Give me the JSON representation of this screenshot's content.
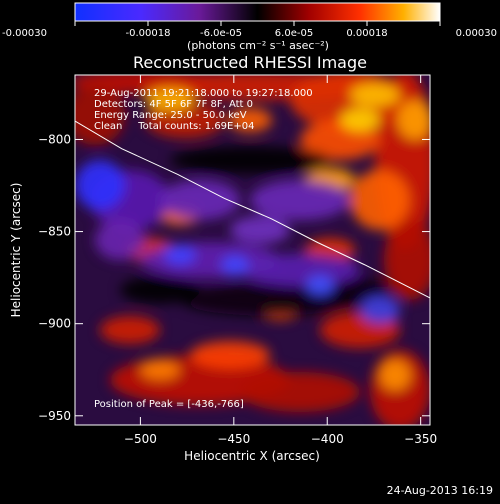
{
  "colorbar": {
    "ticks": [
      "-0.00030",
      "-0.00018",
      "-6.0e-05",
      "6.0e-05",
      "0.00018",
      "0.00030"
    ],
    "tick_values": [
      -0.0003,
      -0.00018,
      -6e-05,
      6e-05,
      0.00018,
      0.0003
    ],
    "range": [
      -0.0003,
      0.0003
    ],
    "units_label": "(photons cm⁻² s⁻¹ asec⁻²)"
  },
  "chart_data": {
    "type": "heatmap",
    "title": "Reconstructed RHESSI Image",
    "xlabel": "Heliocentric X (arcsec)",
    "ylabel": "Heliocentric Y (arcsec)",
    "xlim": [
      -535,
      -345
    ],
    "ylim": [
      -955,
      -765
    ],
    "xticks": [
      -500,
      -450,
      -400,
      -350
    ],
    "yticks": [
      -800,
      -850,
      -900,
      -950
    ],
    "xtick_labels": [
      "−500",
      "−450",
      "−400",
      "−350"
    ],
    "ytick_labels": [
      "−800",
      "−850",
      "−900",
      "−950"
    ],
    "colormap": "blue-purple-black-red-orange-yellow-white",
    "limb_line": {
      "x": [
        -535,
        -510,
        -480,
        -455,
        -430,
        -405,
        -380,
        -345
      ],
      "y": [
        -790,
        -805,
        -819,
        -832,
        -843,
        -856,
        -868,
        -886
      ]
    },
    "peak_marker": {
      "x": -436,
      "y": -766
    }
  },
  "annotations": [
    "29-Aug-2011 19:21:18.000 to 19:27:18.000",
    "Detectors: 4F 5F 6F 7F 8F, Att 0",
    "Energy Range: 25.0 - 50.0 keV",
    "Clean     Total counts: 1.69E+04"
  ],
  "peak_label": "Position of Peak = [-436,-766]",
  "footer_date": "24-Aug-2013 16:19"
}
